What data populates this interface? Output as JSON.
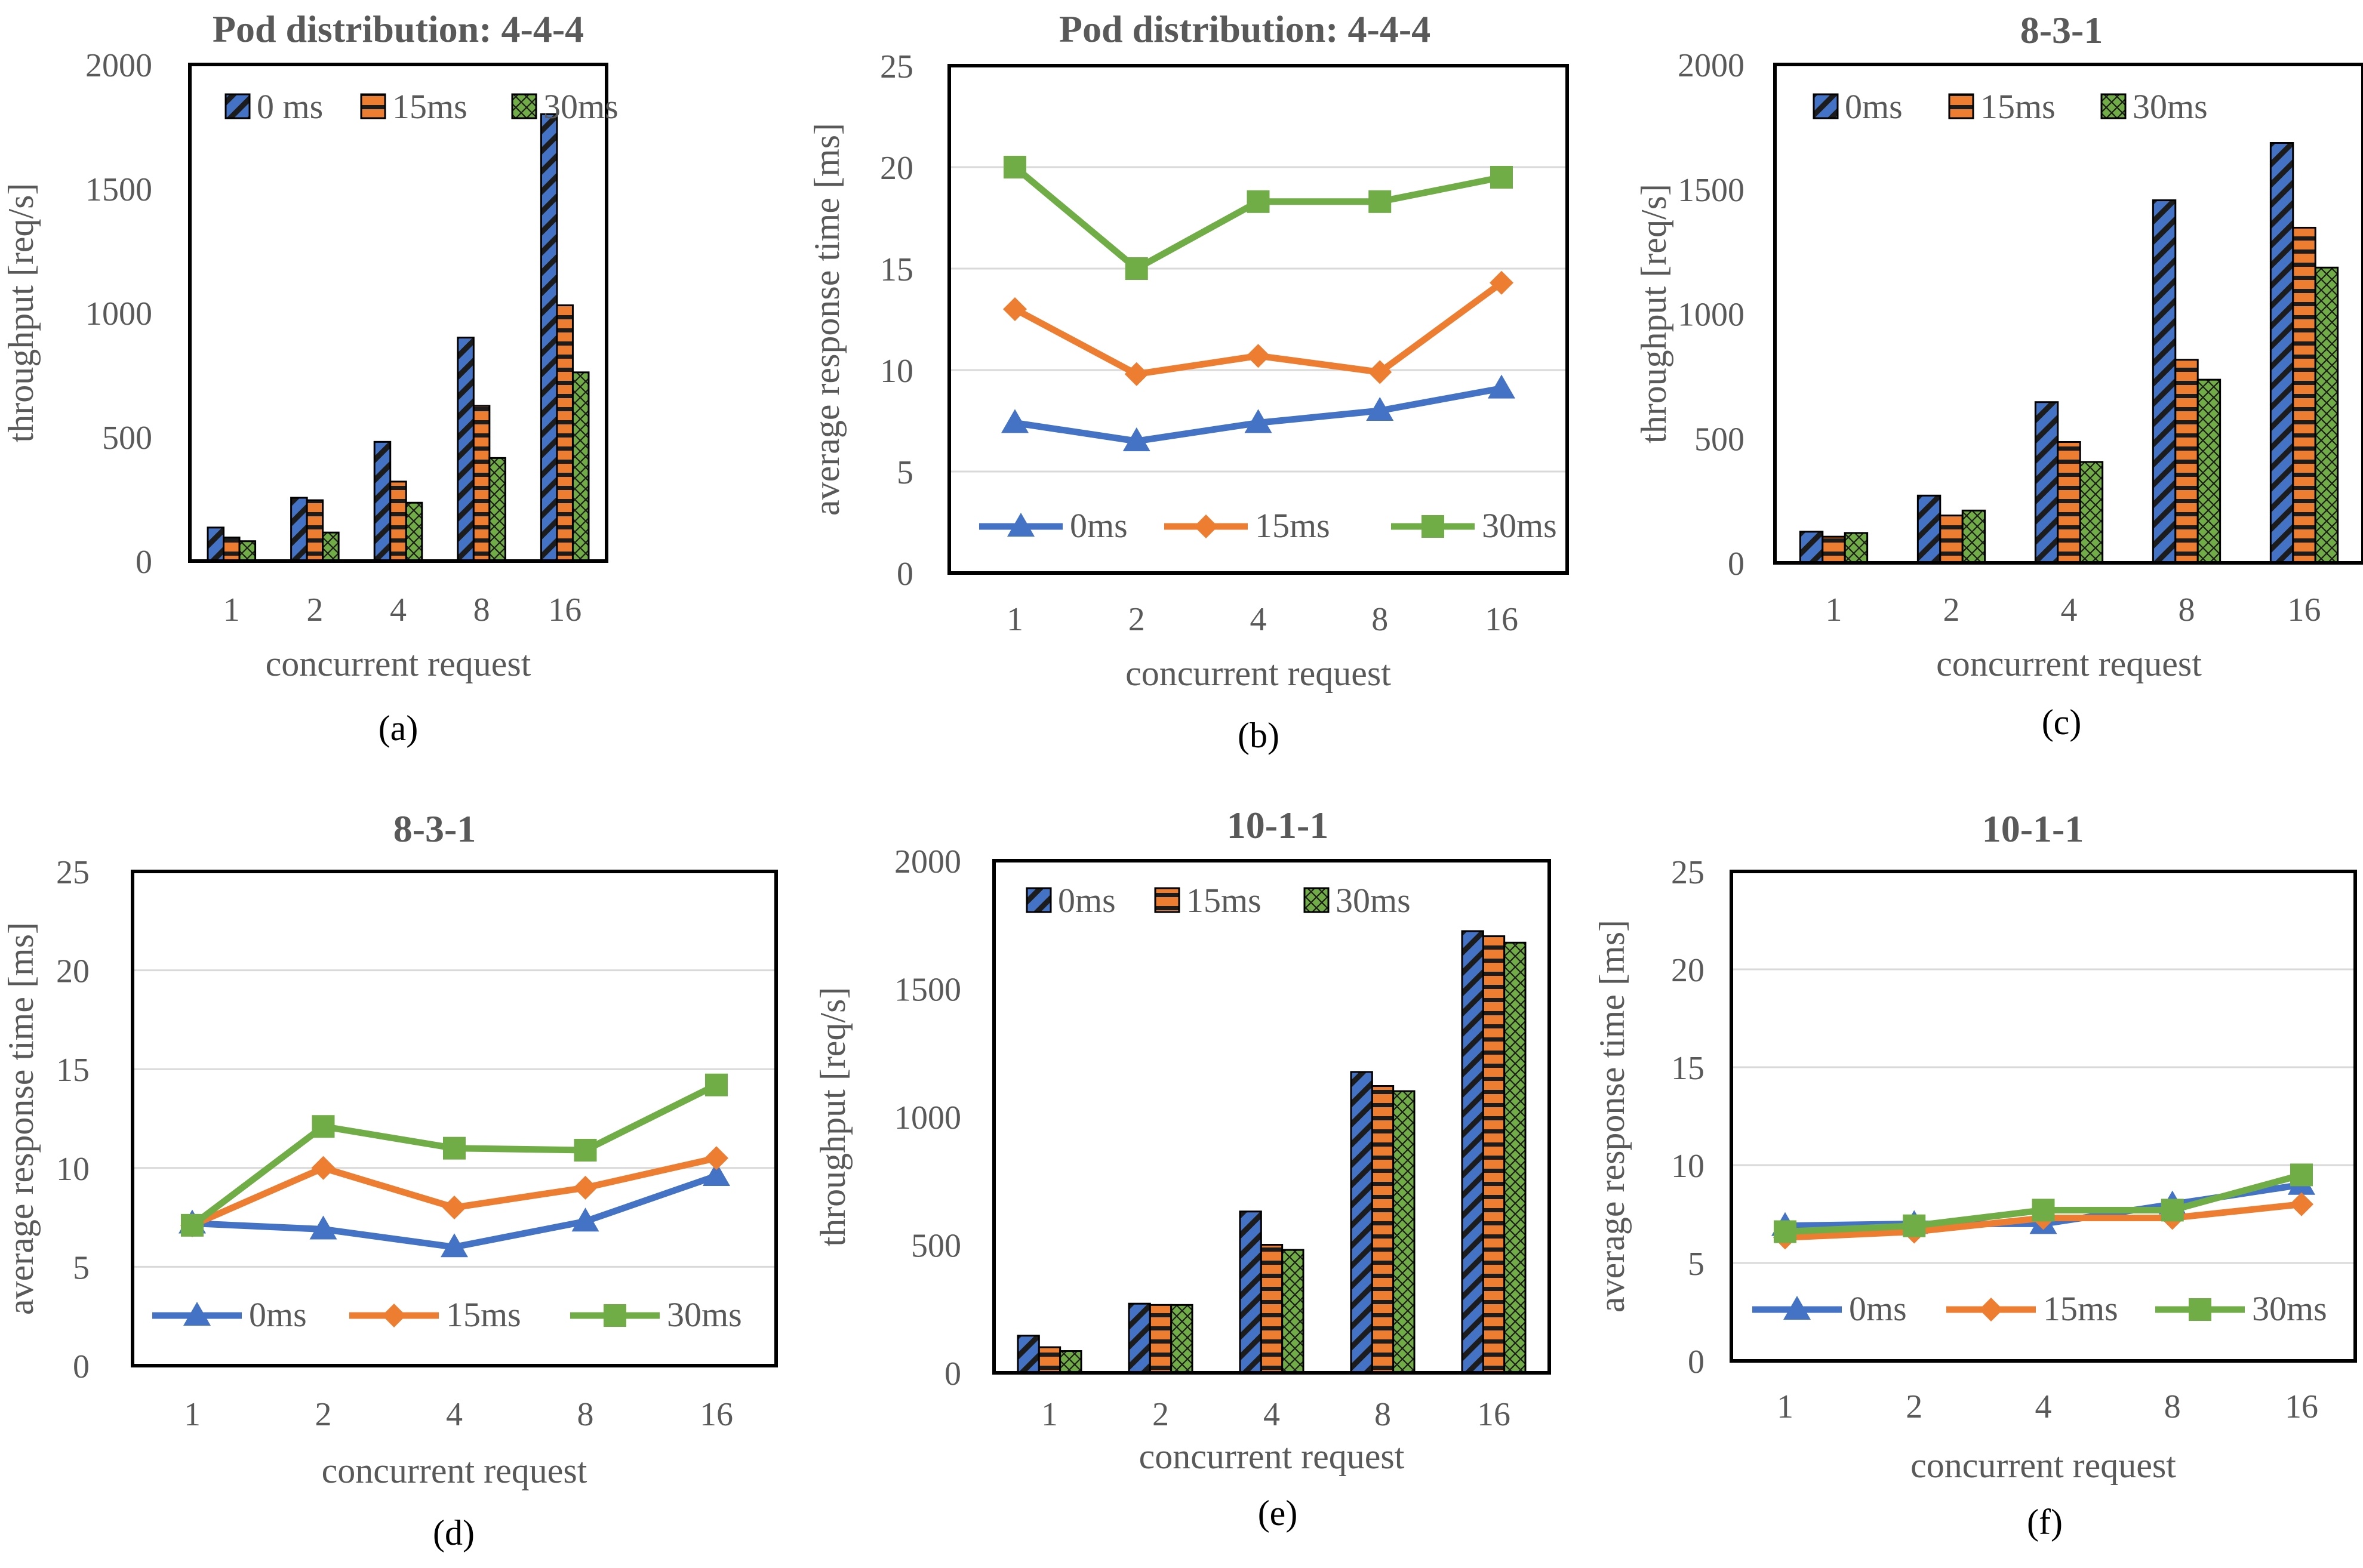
{
  "colors": {
    "zero_ms": "#4472c4",
    "fifteen_ms": "#ed7d31",
    "thirty_ms": "#70ad47",
    "axis_text": "#595959",
    "title_text": "#595959",
    "gridline": "#d9d9d9",
    "frame": "#000000"
  },
  "chart_data": [
    {
      "panel": "a",
      "caption": "(a)",
      "type": "bar",
      "title": "Pod distribution: 4-4-4",
      "xlabel": "concurrent request",
      "ylabel": "throughput [req/s]",
      "categories": [
        "1",
        "2",
        "4",
        "8",
        "16"
      ],
      "ylim": [
        0,
        2000
      ],
      "ytick_step": 500,
      "yticks": [
        "0",
        "500",
        "1000",
        "1500",
        "2000"
      ],
      "grid": false,
      "legend": "top",
      "series": [
        {
          "name": "0 ms",
          "values": [
            135,
            255,
            480,
            900,
            1800
          ]
        },
        {
          "name": "15ms",
          "values": [
            95,
            245,
            320,
            625,
            1030
          ]
        },
        {
          "name": "30ms",
          "values": [
            80,
            115,
            235,
            415,
            760
          ]
        }
      ]
    },
    {
      "panel": "b",
      "caption": "(b)",
      "type": "line",
      "title": "Pod distribution: 4-4-4",
      "xlabel": "concurrent request",
      "ylabel": "average response time [ms]",
      "categories": [
        "1",
        "2",
        "4",
        "8",
        "16"
      ],
      "ylim": [
        0,
        25
      ],
      "ytick_step": 5,
      "yticks": [
        "0",
        "5",
        "10",
        "15",
        "20",
        "25"
      ],
      "grid": true,
      "legend": "bottom",
      "series": [
        {
          "name": "0ms",
          "values": [
            7.4,
            6.5,
            7.4,
            8.0,
            9.1
          ]
        },
        {
          "name": "15ms",
          "values": [
            13.0,
            9.8,
            10.7,
            9.9,
            14.3
          ]
        },
        {
          "name": "30ms",
          "values": [
            20.0,
            15.0,
            18.3,
            18.3,
            19.5
          ]
        }
      ]
    },
    {
      "panel": "c",
      "caption": "(c)",
      "type": "bar",
      "title": "8-3-1",
      "xlabel": "concurrent request",
      "ylabel": "throughput [req/s]",
      "categories": [
        "1",
        "2",
        "4",
        "8",
        "16"
      ],
      "ylim": [
        0,
        2000
      ],
      "ytick_step": 500,
      "yticks": [
        "0",
        "500",
        "1000",
        "1500",
        "2000"
      ],
      "grid": false,
      "legend": "top",
      "series": [
        {
          "name": "0ms",
          "values": [
            125,
            270,
            645,
            1455,
            1685
          ]
        },
        {
          "name": "15ms",
          "values": [
            105,
            190,
            485,
            815,
            1345
          ]
        },
        {
          "name": "30ms",
          "values": [
            120,
            210,
            405,
            735,
            1185
          ]
        }
      ]
    },
    {
      "panel": "d",
      "caption": "(d)",
      "type": "line",
      "title": "8-3-1",
      "xlabel": "concurrent request",
      "ylabel": "average response time [ms]",
      "categories": [
        "1",
        "2",
        "4",
        "8",
        "16"
      ],
      "ylim": [
        0,
        25
      ],
      "ytick_step": 5,
      "yticks": [
        "0",
        "5",
        "10",
        "15",
        "20",
        "25"
      ],
      "grid": true,
      "legend": "bottom",
      "series": [
        {
          "name": "0ms",
          "values": [
            7.2,
            6.9,
            6.0,
            7.3,
            9.6
          ]
        },
        {
          "name": "15ms",
          "values": [
            7.1,
            10.0,
            8.0,
            9.0,
            10.5
          ]
        },
        {
          "name": "30ms",
          "values": [
            7.1,
            12.1,
            11.0,
            10.9,
            14.2
          ]
        }
      ]
    },
    {
      "panel": "e",
      "caption": "(e)",
      "type": "bar",
      "title": "10-1-1",
      "xlabel": "concurrent request",
      "ylabel": "throughput [req/s]",
      "categories": [
        "1",
        "2",
        "4",
        "8",
        "16"
      ],
      "ylim": [
        0,
        2000
      ],
      "ytick_step": 500,
      "yticks": [
        "0",
        "500",
        "1000",
        "1500",
        "2000"
      ],
      "grid": false,
      "legend": "top",
      "series": [
        {
          "name": "0ms",
          "values": [
            145,
            270,
            630,
            1175,
            1725
          ]
        },
        {
          "name": "15ms",
          "values": [
            100,
            265,
            500,
            1120,
            1705
          ]
        },
        {
          "name": "30ms",
          "values": [
            85,
            265,
            480,
            1100,
            1680
          ]
        }
      ]
    },
    {
      "panel": "f",
      "caption": "(f)",
      "type": "line",
      "title": "10-1-1",
      "xlabel": "concurrent request",
      "ylabel": "average response time [ms]",
      "categories": [
        "1",
        "2",
        "4",
        "8",
        "16"
      ],
      "ylim": [
        0,
        25
      ],
      "ytick_step": 5,
      "yticks": [
        "0",
        "5",
        "10",
        "15",
        "20",
        "25"
      ],
      "grid": true,
      "legend": "bottom",
      "series": [
        {
          "name": "0ms",
          "values": [
            6.9,
            7.0,
            7.0,
            8.0,
            9.0
          ]
        },
        {
          "name": "15ms",
          "values": [
            6.3,
            6.6,
            7.3,
            7.3,
            8.0
          ]
        },
        {
          "name": "30ms",
          "values": [
            6.6,
            6.9,
            7.7,
            7.7,
            9.5
          ]
        }
      ]
    }
  ]
}
